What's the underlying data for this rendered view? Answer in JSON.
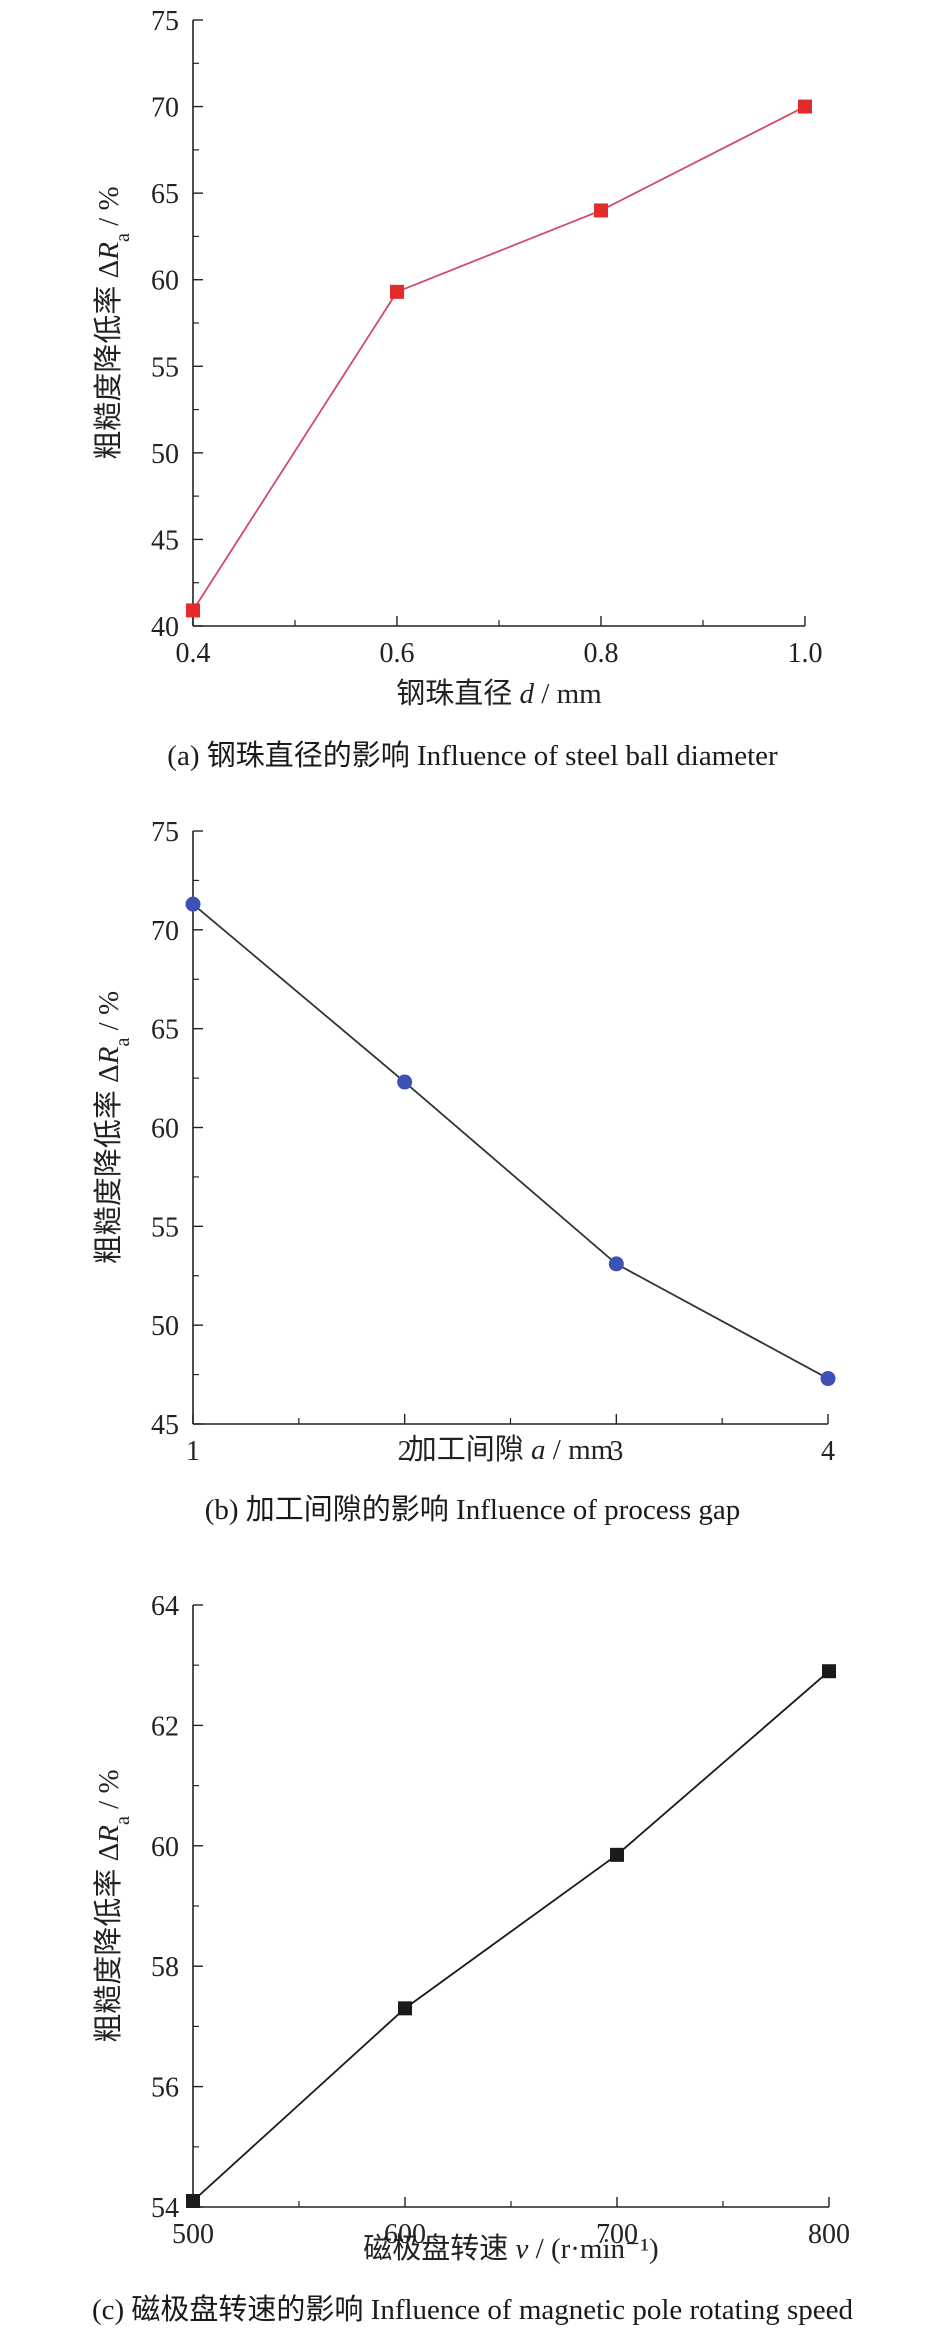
{
  "chart_data": [
    {
      "type": "line",
      "caption": "(a) 钢珠直径的影响 Influence of steel ball diameter",
      "xlabel": "钢珠直径 d / mm",
      "ylabel": "粗糙度降低率 ΔRa / %",
      "x": [
        0.4,
        0.6,
        0.8,
        1.0
      ],
      "x_tick_labels": [
        "0.4",
        "0.6",
        "0.8",
        "1.0"
      ],
      "xlim": [
        0.4,
        1.0
      ],
      "ylim": [
        40,
        75
      ],
      "y_ticks": [
        40,
        45,
        50,
        55,
        60,
        65,
        70,
        75
      ],
      "series": [
        {
          "values": [
            40.9,
            59.3,
            64.0,
            70.0
          ],
          "marker": "square",
          "marker_color": "#e32b2b",
          "line_color": "#d24a6a"
        }
      ]
    },
    {
      "type": "line",
      "caption": "(b) 加工间隙的影响 Influence of process gap",
      "xlabel": "加工间隙 a / mm",
      "ylabel": "粗糙度降低率 ΔRa / %",
      "x": [
        1,
        2,
        3,
        4
      ],
      "x_tick_labels": [
        "1",
        "2",
        "3",
        "4"
      ],
      "xlim": [
        1,
        4
      ],
      "ylim": [
        45,
        75
      ],
      "y_ticks": [
        45,
        50,
        55,
        60,
        65,
        70,
        75
      ],
      "series": [
        {
          "values": [
            71.3,
            62.3,
            53.1,
            47.3
          ],
          "marker": "circle",
          "marker_color": "#3d50b5",
          "line_color": "#333333"
        }
      ]
    },
    {
      "type": "line",
      "caption": "(c) 磁极盘转速的影响 Influence of  magnetic pole rotating speed",
      "xlabel": "磁极盘转速 v / (r·min⁻¹)",
      "ylabel": "粗糙度降低率 ΔRa / %",
      "x": [
        500,
        600,
        700,
        800
      ],
      "x_tick_labels": [
        "500",
        "600",
        "700",
        "800"
      ],
      "xlim": [
        500,
        800
      ],
      "ylim": [
        54,
        64
      ],
      "y_ticks": [
        54,
        56,
        58,
        60,
        62,
        64
      ],
      "series": [
        {
          "values": [
            54.1,
            57.3,
            59.85,
            62.9
          ],
          "marker": "square",
          "marker_color": "#1a1a1a",
          "line_color": "#1a1a1a"
        }
      ]
    }
  ]
}
